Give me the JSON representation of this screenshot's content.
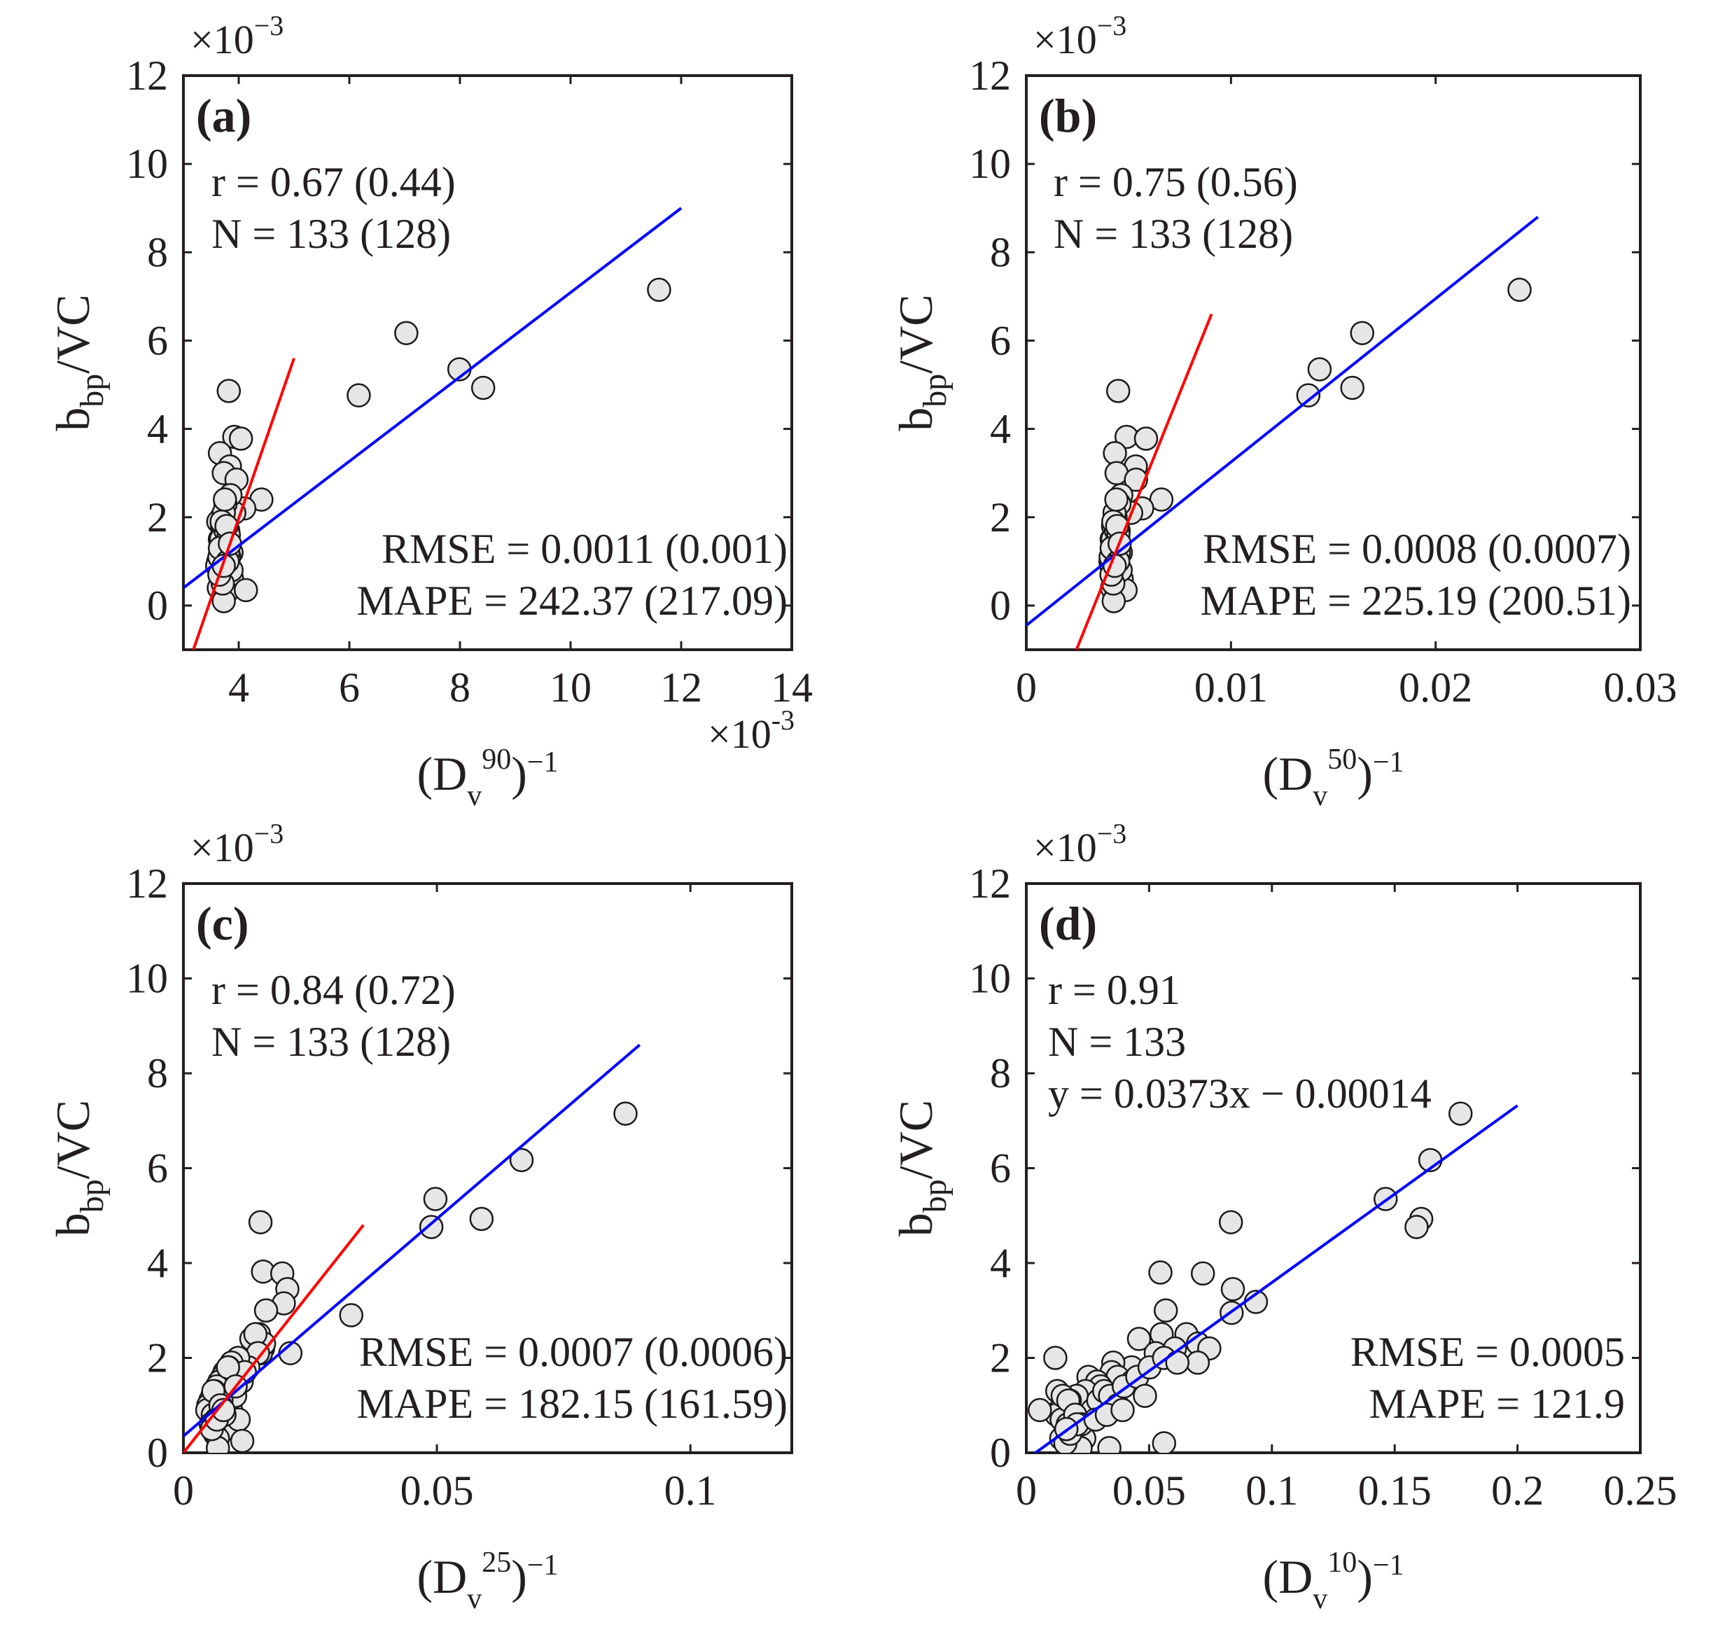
{
  "colors": {
    "point_fill": "#e6e6e6",
    "point_edge": "#1a1a1a",
    "blue_line": "#0000ff",
    "red_line": "#ff0000",
    "axis": "#231f20"
  },
  "y_axis": {
    "label_main": "b",
    "label_sub": "bp",
    "label_rest": "/VC",
    "multiplier": "×10",
    "exponent": "−3"
  },
  "chart_data": [
    {
      "type": "scatter",
      "panel": "(a)",
      "title": "",
      "xlabel": {
        "pre": "(D",
        "sub": "v",
        "sup": "90",
        "post": ")",
        "post_sup": "−1"
      },
      "x_multiplier": "×10",
      "x_exponent": "-3",
      "x_scale": 0.001,
      "xlim": [
        0.003,
        0.014
      ],
      "ylim": [
        -0.001,
        0.012
      ],
      "x_ticks": [
        0.004,
        0.006,
        0.008,
        0.01,
        0.012,
        0.014
      ],
      "x_tick_labels": [
        "4",
        "6",
        "8",
        "10",
        "12",
        "14"
      ],
      "y_ticks": [
        0,
        0.002,
        0.004,
        0.006,
        0.008,
        0.01,
        0.012
      ],
      "y_tick_labels": [
        "0",
        "2",
        "4",
        "6",
        "8",
        "10",
        "12"
      ],
      "stats_top": [
        "r = 0.67 (0.44)",
        "N = 133 (128)"
      ],
      "stats_bottom": [
        "RMSE = 0.0011 (0.001)",
        "MAPE = 242.37 (217.09)"
      ],
      "fit_lines": [
        {
          "name": "blue",
          "x": [
            0.003,
            0.012
          ],
          "y": [
            0.0004,
            0.009
          ]
        },
        {
          "name": "red",
          "x": [
            0.00318,
            0.005
          ],
          "y": [
            -0.001,
            0.0056
          ]
        }
      ],
      "points": {
        "x": [
          0.0116,
          0.00703,
          0.00799,
          0.00842,
          0.00617,
          0.00382,
          0.00392,
          0.00404,
          0.00366,
          0.00384,
          0.00373,
          0.00396,
          0.00441,
          0.0041,
          0.00392,
          0.00385,
          0.00376,
          0.00369,
          0.00363,
          0.0037,
          0.00381,
          0.00374,
          0.00366,
          0.00379,
          0.0037,
          0.00387,
          0.00383,
          0.00363,
          0.00375,
          0.00369,
          0.00386,
          0.00372,
          0.00379,
          0.00361,
          0.00381,
          0.00368,
          0.00376,
          0.0037,
          0.00364,
          0.00388,
          0.00378,
          0.00365,
          0.00373,
          0.00382,
          0.00369,
          0.00375,
          0.00413,
          0.00373,
          0.00387,
          0.00366,
          0.0038,
          0.00371,
          0.00378,
          0.00384,
          0.00365,
          0.00373
        ],
        "y": [
          0.00715,
          0.00617,
          0.00535,
          0.00493,
          0.00476,
          0.00486,
          0.00382,
          0.00378,
          0.00345,
          0.00315,
          0.003,
          0.00285,
          0.0024,
          0.0022,
          0.0021,
          0.0025,
          0.0023,
          0.002,
          0.0019,
          0.0018,
          0.0017,
          0.0016,
          0.0015,
          0.0014,
          0.0013,
          0.0012,
          0.0011,
          0.001,
          0.0009,
          0.0008,
          0.0007,
          0.0006,
          0.0005,
          0.0009,
          0.0012,
          0.0015,
          0.0017,
          0.0007,
          0.0004,
          0.0006,
          0.0003,
          0.0011,
          0.0021,
          0.0016,
          0.0019,
          0.0024,
          0.00035,
          0.0001,
          0.0008,
          0.0013,
          0.001,
          0.0005,
          0.0018,
          0.0014,
          0.0007,
          0.0009
        ]
      }
    },
    {
      "type": "scatter",
      "panel": "(b)",
      "title": "",
      "xlabel": {
        "pre": "(D",
        "sub": "v",
        "sup": "50",
        "post": ")",
        "post_sup": "−1"
      },
      "x_scale": 1,
      "xlim": [
        0,
        0.03
      ],
      "ylim": [
        -0.001,
        0.012
      ],
      "x_ticks": [
        0,
        0.01,
        0.02,
        0.03
      ],
      "x_tick_labels": [
        "0",
        "0.01",
        "0.02",
        "0.03"
      ],
      "y_ticks": [
        0,
        0.002,
        0.004,
        0.006,
        0.008,
        0.01,
        0.012
      ],
      "y_tick_labels": [
        "0",
        "2",
        "4",
        "6",
        "8",
        "10",
        "12"
      ],
      "stats_top": [
        "r = 0.75 (0.56)",
        "N = 133 (128)"
      ],
      "stats_bottom": [
        "RMSE = 0.0008 (0.0007)",
        "MAPE = 225.19 (200.51)"
      ],
      "fit_lines": [
        {
          "name": "blue",
          "x": [
            0.0,
            0.025
          ],
          "y": [
            -0.00045,
            0.0088
          ]
        },
        {
          "name": "red",
          "x": [
            0.00245,
            0.00905
          ],
          "y": [
            -0.001,
            0.0066
          ]
        }
      ],
      "points": {
        "x": [
          0.0241,
          0.01641,
          0.01433,
          0.01593,
          0.01378,
          0.00449,
          0.0049,
          0.00585,
          0.00433,
          0.00535,
          0.00441,
          0.00536,
          0.0066,
          0.00566,
          0.00512,
          0.00464,
          0.00455,
          0.00436,
          0.00429,
          0.00424,
          0.00451,
          0.00441,
          0.00417,
          0.00448,
          0.00426,
          0.00462,
          0.00441,
          0.00411,
          0.00433,
          0.00421,
          0.00459,
          0.00426,
          0.00447,
          0.00415,
          0.00452,
          0.00421,
          0.00438,
          0.00427,
          0.00419,
          0.00466,
          0.00441,
          0.00412,
          0.00431,
          0.0045,
          0.00425,
          0.0044,
          0.00485,
          0.00427,
          0.00461,
          0.00417,
          0.00449,
          0.00425,
          0.00444,
          0.00456,
          0.00416,
          0.00432
        ],
        "y": [
          0.00715,
          0.00617,
          0.00535,
          0.00493,
          0.00476,
          0.00486,
          0.00382,
          0.00378,
          0.00345,
          0.00315,
          0.003,
          0.00285,
          0.0024,
          0.0022,
          0.0021,
          0.0025,
          0.0023,
          0.002,
          0.0019,
          0.0018,
          0.0017,
          0.0016,
          0.0015,
          0.0014,
          0.0013,
          0.0012,
          0.0011,
          0.001,
          0.0009,
          0.0008,
          0.0007,
          0.0006,
          0.0005,
          0.0009,
          0.0012,
          0.0015,
          0.0017,
          0.0007,
          0.0004,
          0.0006,
          0.0003,
          0.0011,
          0.0021,
          0.0016,
          0.0019,
          0.0024,
          0.00035,
          0.0001,
          0.0008,
          0.0013,
          0.001,
          0.0005,
          0.0018,
          0.0014,
          0.0007,
          0.0009
        ]
      }
    },
    {
      "type": "scatter",
      "panel": "(c)",
      "title": "",
      "xlabel": {
        "pre": "(D",
        "sub": "v",
        "sup": "25",
        "post": ")",
        "post_sup": "−1"
      },
      "x_scale": 1,
      "xlim": [
        0,
        0.12
      ],
      "ylim": [
        0,
        0.012
      ],
      "x_ticks": [
        0,
        0.05,
        0.1
      ],
      "x_tick_labels": [
        "0",
        "0.05",
        "0.1"
      ],
      "y_ticks": [
        0,
        0.002,
        0.004,
        0.006,
        0.008,
        0.01,
        0.012
      ],
      "y_tick_labels": [
        "0",
        "2",
        "4",
        "6",
        "8",
        "10",
        "12"
      ],
      "stats_top": [
        "r = 0.84 (0.72)",
        "N = 133 (128)"
      ],
      "stats_bottom": [
        "RMSE = 0.0007 (0.0006)",
        "MAPE = 182.15 (161.59)"
      ],
      "fit_lines": [
        {
          "name": "blue",
          "x": [
            0.0,
            0.09
          ],
          "y": [
            0.00035,
            0.0086
          ]
        },
        {
          "name": "red",
          "x": [
            0.0,
            0.0355
          ],
          "y": [
            0.0,
            0.0048
          ]
        }
      ],
      "points": {
        "x": [
          0.0872,
          0.0667,
          0.0497,
          0.0588,
          0.0489,
          0.0152,
          0.0157,
          0.0195,
          0.0205,
          0.0198,
          0.0163,
          0.0331,
          0.0149,
          0.0157,
          0.0134,
          0.0211,
          0.0153,
          0.0159,
          0.0142,
          0.0147,
          0.0128,
          0.0108,
          0.0095,
          0.0089,
          0.0081,
          0.0077,
          0.0071,
          0.0066,
          0.0061,
          0.0057,
          0.0053,
          0.0049,
          0.0047,
          0.0058,
          0.0064,
          0.0072,
          0.0083,
          0.0094,
          0.0102,
          0.0115,
          0.0121,
          0.0109,
          0.0062,
          0.0054,
          0.0068,
          0.0075,
          0.0116,
          0.0068,
          0.0081,
          0.0059,
          0.0073,
          0.0056,
          0.0088,
          0.0103,
          0.0066,
          0.0079
        ],
        "y": [
          0.00715,
          0.00617,
          0.00535,
          0.00493,
          0.00476,
          0.00486,
          0.00382,
          0.00378,
          0.00345,
          0.00315,
          0.003,
          0.0029,
          0.0025,
          0.0022,
          0.0024,
          0.0021,
          0.0021,
          0.0023,
          0.0025,
          0.0021,
          0.0018,
          0.002,
          0.0019,
          0.0018,
          0.0017,
          0.0016,
          0.0015,
          0.0014,
          0.0013,
          0.0012,
          0.0011,
          0.001,
          0.0009,
          0.0008,
          0.0007,
          0.0006,
          0.0005,
          0.0009,
          0.0012,
          0.0015,
          0.0017,
          0.0007,
          0.0004,
          0.0006,
          0.0003,
          0.0011,
          0.00025,
          0.0001,
          0.0008,
          0.0013,
          0.001,
          0.0005,
          0.0018,
          0.0014,
          0.0007,
          0.0009
        ]
      }
    },
    {
      "type": "scatter",
      "panel": "(d)",
      "title": "",
      "xlabel": {
        "pre": "(D",
        "sub": "v",
        "sup": "10",
        "post": ")",
        "post_sup": "−1"
      },
      "x_scale": 1,
      "xlim": [
        0,
        0.25
      ],
      "ylim": [
        0,
        0.012
      ],
      "x_ticks": [
        0,
        0.05,
        0.1,
        0.15,
        0.2,
        0.25
      ],
      "x_tick_labels": [
        "0",
        "0.05",
        "0.1",
        "0.15",
        "0.2",
        "0.25"
      ],
      "y_ticks": [
        0,
        0.002,
        0.004,
        0.006,
        0.008,
        0.01,
        0.012
      ],
      "y_tick_labels": [
        "0",
        "2",
        "4",
        "6",
        "8",
        "10",
        "12"
      ],
      "stats_top": [
        "r = 0.91",
        "N = 133",
        "y = 0.0373x − 0.00014"
      ],
      "stats_bottom": [
        "RMSE = 0.0005",
        "MAPE = 121.9"
      ],
      "fit_lines": [
        {
          "name": "blue",
          "x": [
            0.0,
            0.2
          ],
          "y": [
            -0.00014,
            0.00732
          ]
        }
      ],
      "points": {
        "x": [
          0.1768,
          0.1645,
          0.1463,
          0.1608,
          0.1589,
          0.0833,
          0.0546,
          0.0719,
          0.0841,
          0.0935,
          0.0836,
          0.0568,
          0.0652,
          0.0699,
          0.0745,
          0.0551,
          0.0459,
          0.0527,
          0.0605,
          0.0698,
          0.0429,
          0.0354,
          0.0347,
          0.0372,
          0.0431,
          0.0253,
          0.0288,
          0.0302,
          0.0241,
          0.0205,
          0.0177,
          0.0159,
          0.0136,
          0.0123,
          0.0144,
          0.0169,
          0.0192,
          0.0217,
          0.0236,
          0.0269,
          0.0293,
          0.0317,
          0.0341,
          0.0372,
          0.0397,
          0.0452,
          0.0502,
          0.0561,
          0.0615,
          0.0126,
          0.0148,
          0.0171,
          0.0199,
          0.0224,
          0.0055,
          0.0118,
          0.0338,
          0.0561,
          0.0221,
          0.0142,
          0.0159,
          0.0179,
          0.0206,
          0.0163,
          0.0282,
          0.0328,
          0.0392,
          0.0483
        ],
        "y": [
          0.00715,
          0.00617,
          0.00535,
          0.00493,
          0.00476,
          0.00486,
          0.0038,
          0.00378,
          0.00345,
          0.00318,
          0.00295,
          0.003,
          0.0025,
          0.0023,
          0.0022,
          0.0025,
          0.0024,
          0.0021,
          0.0022,
          0.0019,
          0.0018,
          0.0019,
          0.0017,
          0.0016,
          0.0015,
          0.0016,
          0.0015,
          0.0014,
          0.0013,
          0.0012,
          0.0011,
          0.001,
          0.0009,
          0.0008,
          0.0007,
          0.0006,
          0.0005,
          0.0004,
          0.0003,
          0.0009,
          0.0011,
          0.0013,
          0.0012,
          0.001,
          0.0014,
          0.0016,
          0.0018,
          0.002,
          0.0019,
          0.0013,
          0.0012,
          0.0011,
          0.0008,
          0.0006,
          0.0009,
          0.002,
          0.0001,
          0.0002,
          0.0001,
          0.0003,
          0.0002,
          0.0004,
          0.0006,
          0.0005,
          0.0007,
          0.0008,
          0.0009,
          0.0012
        ]
      }
    }
  ]
}
